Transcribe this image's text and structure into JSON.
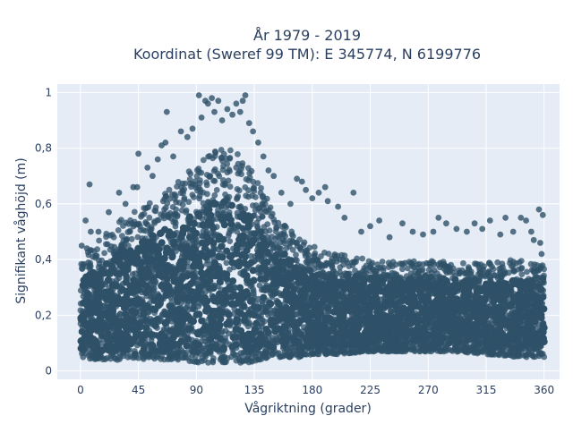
{
  "chart_data": {
    "type": "scatter",
    "title_line1": "År 1979 - 2019",
    "title_line2": "Koordinat (Sweref 99 TM): E 345774, N 6199776",
    "xlabel": "Vågriktning (grader)",
    "ylabel": "Signifikant våghöjd (m)",
    "xlim": [
      -18,
      372
    ],
    "ylim": [
      -0.03,
      1.03
    ],
    "x_ticks": [
      0,
      45,
      90,
      135,
      180,
      225,
      270,
      315,
      360
    ],
    "x_tick_labels": [
      "0",
      "45",
      "90",
      "135",
      "180",
      "225",
      "270",
      "315",
      "360"
    ],
    "y_ticks": [
      0,
      0.2,
      0.4,
      0.6,
      0.8,
      1
    ],
    "y_tick_labels": [
      "0",
      "0,2",
      "0,4",
      "0,6",
      "0,8",
      "1"
    ],
    "grid": true,
    "marker_color": "#2f5168",
    "background_color": "#e5ecf6",
    "envelope": {
      "x": [
        0,
        10,
        20,
        30,
        45,
        60,
        75,
        90,
        100,
        110,
        120,
        130,
        140,
        150,
        160,
        170,
        180,
        190,
        200,
        225,
        250,
        270,
        290,
        315,
        340,
        360
      ],
      "upper": [
        0.4,
        0.45,
        0.5,
        0.54,
        0.58,
        0.63,
        0.68,
        0.74,
        0.78,
        0.8,
        0.79,
        0.74,
        0.67,
        0.58,
        0.52,
        0.48,
        0.45,
        0.43,
        0.42,
        0.4,
        0.39,
        0.4,
        0.39,
        0.39,
        0.4,
        0.38
      ],
      "lower": [
        0.05,
        0.04,
        0.04,
        0.04,
        0.04,
        0.04,
        0.04,
        0.03,
        0.03,
        0.03,
        0.03,
        0.03,
        0.04,
        0.05,
        0.05,
        0.05,
        0.06,
        0.06,
        0.06,
        0.07,
        0.07,
        0.07,
        0.07,
        0.06,
        0.05,
        0.05
      ]
    },
    "outliers": [
      {
        "x": 4,
        "y": 0.54
      },
      {
        "x": 8,
        "y": 0.5
      },
      {
        "x": 14,
        "y": 0.5
      },
      {
        "x": 7,
        "y": 0.67
      },
      {
        "x": 22,
        "y": 0.57
      },
      {
        "x": 30,
        "y": 0.64
      },
      {
        "x": 35,
        "y": 0.6
      },
      {
        "x": 41,
        "y": 0.66
      },
      {
        "x": 44,
        "y": 0.66
      },
      {
        "x": 45,
        "y": 0.78
      },
      {
        "x": 52,
        "y": 0.73
      },
      {
        "x": 56,
        "y": 0.7
      },
      {
        "x": 60,
        "y": 0.76
      },
      {
        "x": 63,
        "y": 0.81
      },
      {
        "x": 66,
        "y": 0.82
      },
      {
        "x": 67,
        "y": 0.93
      },
      {
        "x": 72,
        "y": 0.77
      },
      {
        "x": 78,
        "y": 0.86
      },
      {
        "x": 83,
        "y": 0.84
      },
      {
        "x": 87,
        "y": 0.87
      },
      {
        "x": 92,
        "y": 0.99
      },
      {
        "x": 94,
        "y": 0.91
      },
      {
        "x": 97,
        "y": 0.97
      },
      {
        "x": 99,
        "y": 0.96
      },
      {
        "x": 102,
        "y": 0.98
      },
      {
        "x": 104,
        "y": 0.93
      },
      {
        "x": 107,
        "y": 0.97
      },
      {
        "x": 110,
        "y": 0.9
      },
      {
        "x": 114,
        "y": 0.94
      },
      {
        "x": 118,
        "y": 0.92
      },
      {
        "x": 121,
        "y": 0.96
      },
      {
        "x": 124,
        "y": 0.93
      },
      {
        "x": 126,
        "y": 0.97
      },
      {
        "x": 128,
        "y": 0.99
      },
      {
        "x": 131,
        "y": 0.89
      },
      {
        "x": 134,
        "y": 0.86
      },
      {
        "x": 138,
        "y": 0.82
      },
      {
        "x": 142,
        "y": 0.77
      },
      {
        "x": 146,
        "y": 0.72
      },
      {
        "x": 150,
        "y": 0.7
      },
      {
        "x": 156,
        "y": 0.64
      },
      {
        "x": 163,
        "y": 0.6
      },
      {
        "x": 168,
        "y": 0.69
      },
      {
        "x": 172,
        "y": 0.68
      },
      {
        "x": 175,
        "y": 0.65
      },
      {
        "x": 180,
        "y": 0.62
      },
      {
        "x": 185,
        "y": 0.64
      },
      {
        "x": 190,
        "y": 0.66
      },
      {
        "x": 192,
        "y": 0.61
      },
      {
        "x": 200,
        "y": 0.59
      },
      {
        "x": 205,
        "y": 0.55
      },
      {
        "x": 212,
        "y": 0.64
      },
      {
        "x": 218,
        "y": 0.5
      },
      {
        "x": 225,
        "y": 0.52
      },
      {
        "x": 232,
        "y": 0.54
      },
      {
        "x": 240,
        "y": 0.48
      },
      {
        "x": 250,
        "y": 0.53
      },
      {
        "x": 258,
        "y": 0.5
      },
      {
        "x": 266,
        "y": 0.49
      },
      {
        "x": 274,
        "y": 0.5
      },
      {
        "x": 278,
        "y": 0.55
      },
      {
        "x": 284,
        "y": 0.53
      },
      {
        "x": 292,
        "y": 0.51
      },
      {
        "x": 300,
        "y": 0.5
      },
      {
        "x": 306,
        "y": 0.53
      },
      {
        "x": 312,
        "y": 0.51
      },
      {
        "x": 318,
        "y": 0.54
      },
      {
        "x": 326,
        "y": 0.49
      },
      {
        "x": 330,
        "y": 0.55
      },
      {
        "x": 336,
        "y": 0.5
      },
      {
        "x": 342,
        "y": 0.55
      },
      {
        "x": 346,
        "y": 0.54
      },
      {
        "x": 350,
        "y": 0.5
      },
      {
        "x": 356,
        "y": 0.58
      },
      {
        "x": 359,
        "y": 0.56
      },
      {
        "x": 357,
        "y": 0.46
      },
      {
        "x": 5,
        "y": 0.44
      },
      {
        "x": 358,
        "y": 0.42
      },
      {
        "x": 1,
        "y": 0.45
      },
      {
        "x": 352,
        "y": 0.47
      }
    ]
  }
}
